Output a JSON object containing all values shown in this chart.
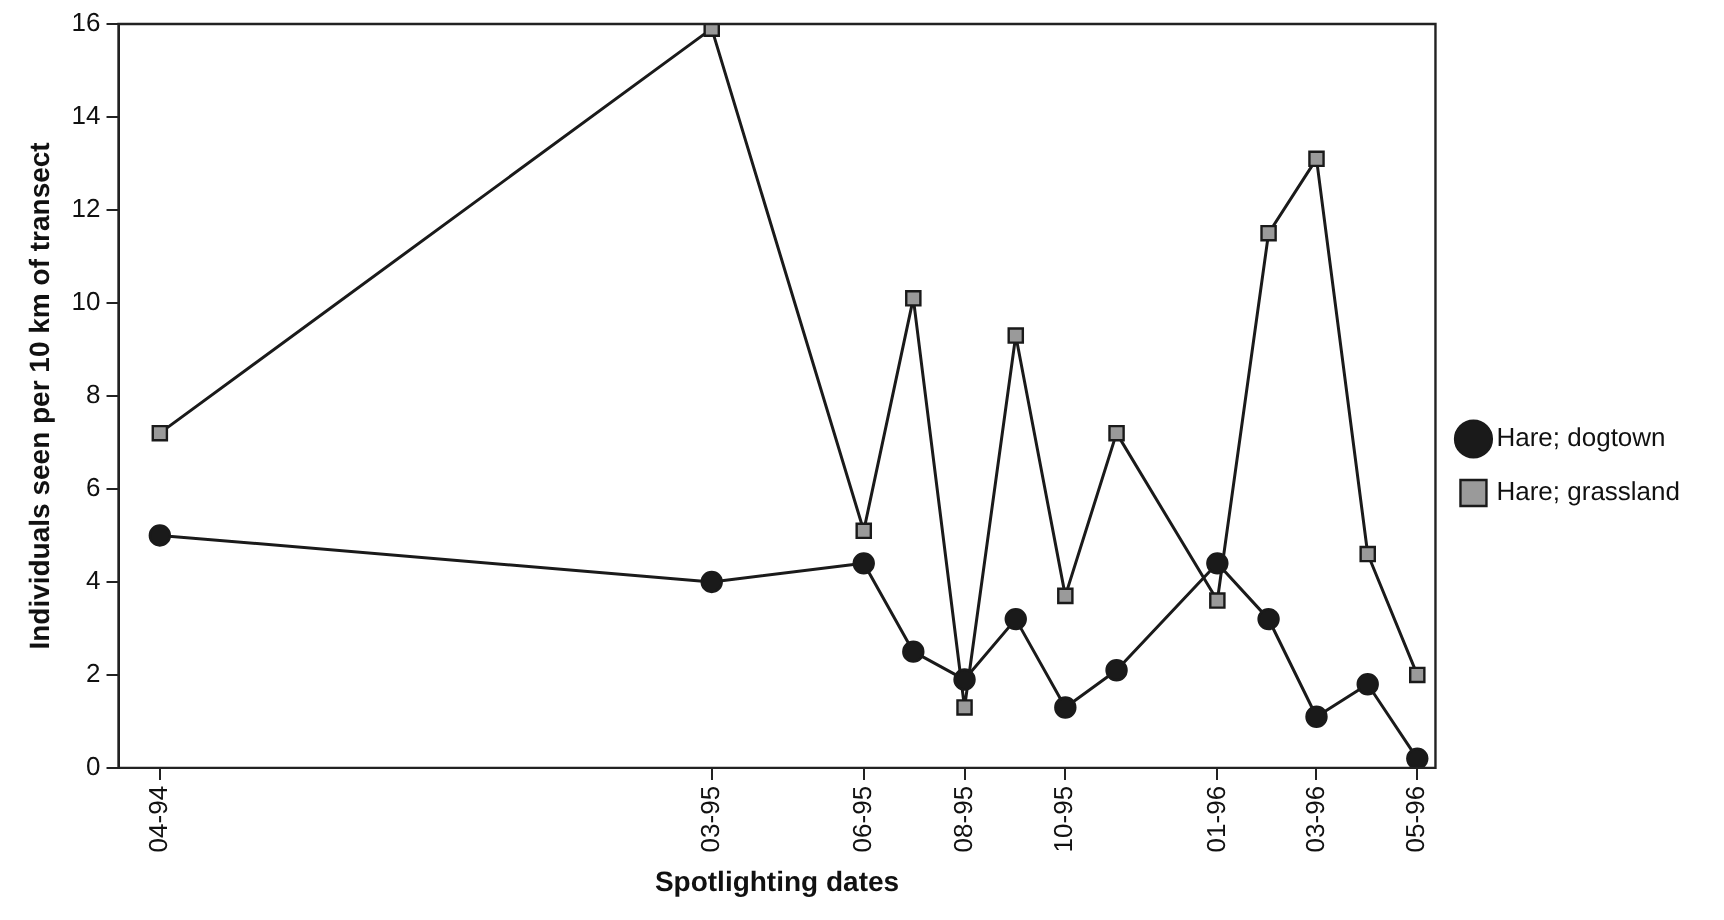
{
  "chart_data": {
    "type": "line",
    "xlabel": "Spotlighting dates",
    "ylabel": "Individuals seen per 10 km of transect",
    "x": [
      "1994-04",
      "1995-03",
      "1995-06",
      "1995-07",
      "1995-08",
      "1995-09",
      "1995-10",
      "1995-11",
      "1996-01",
      "1996-02",
      "1996-03",
      "1996-04",
      "1996-05"
    ],
    "series": [
      {
        "name": "Hare; dogtown",
        "color": "#1a1a1a",
        "marker": "circle",
        "values": [
          5.0,
          4.0,
          4.4,
          2.5,
          1.9,
          3.2,
          1.3,
          2.1,
          4.4,
          3.2,
          1.1,
          1.8,
          0.2
        ]
      },
      {
        "name": "Hare; grassland",
        "color": "#1a1a1a",
        "marker": "square",
        "values": [
          7.2,
          15.9,
          5.1,
          10.1,
          1.3,
          9.3,
          3.7,
          7.2,
          3.6,
          11.5,
          13.1,
          4.6,
          2.0
        ]
      }
    ],
    "xlim": [
      "1994-03-07",
      "1996-05-12"
    ],
    "xticks": [
      {
        "value": "1994-04",
        "label": "04-94"
      },
      {
        "value": "1995-03",
        "label": "03-95"
      },
      {
        "value": "1995-06",
        "label": "06-95"
      },
      {
        "value": "1995-08",
        "label": "08-95"
      },
      {
        "value": "1995-10",
        "label": "10-95"
      },
      {
        "value": "1996-01",
        "label": "01-96"
      },
      {
        "value": "1996-03",
        "label": "03-96"
      },
      {
        "value": "1996-05",
        "label": "05-96"
      }
    ],
    "ylim": [
      0,
      16
    ],
    "yticks": [
      0,
      2,
      4,
      6,
      8,
      10,
      12,
      14,
      16
    ],
    "grid": false,
    "legend": "right",
    "line_style": "solid"
  }
}
